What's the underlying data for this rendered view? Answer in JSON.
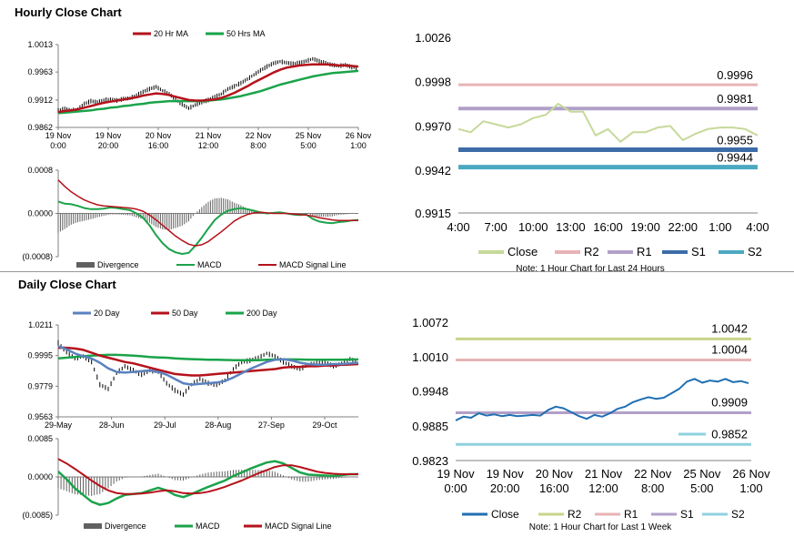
{
  "sections": {
    "hourly_title": "Hourly Close Chart",
    "daily_title": "Daily Close Chart"
  },
  "colors": {
    "ma_short": "#b5121b",
    "ma_long": "#1aa34a",
    "ma20_daily": "#5a82be",
    "ma200_daily": "#1aa34a",
    "price_bar": "#000000",
    "divergence": "#606060",
    "close_light": "#c6d99a",
    "r2": "#e7b3b6",
    "r1": "#b1a0c8",
    "s1": "#3c6ca8",
    "s2": "#4ba9c0",
    "close_blue": "#1f6fb2",
    "r2_weekly": "#c8d48a",
    "s2_weekly": "#8fd1df",
    "axis": "#808080"
  },
  "chart_data": [
    {
      "id": "hourly_price",
      "type": "line",
      "legend": [
        "20 Hr MA",
        "50 Hrs MA"
      ],
      "ylim": [
        0.9862,
        1.0013
      ],
      "yticks": [
        "1.0013",
        "0.9963",
        "0.9912",
        "0.9862"
      ],
      "ytick_values": [
        1.0013,
        0.9963,
        0.9912,
        0.9862
      ],
      "xticks": [
        [
          "19 Nov",
          "0:00"
        ],
        [
          "19 Nov",
          "20:00"
        ],
        [
          "20 Nov",
          "16:00"
        ],
        [
          "21 Nov",
          "12:00"
        ],
        [
          "22 Nov",
          "8:00"
        ],
        [
          "25 Nov",
          "5:00"
        ],
        [
          "26 Nov",
          "1:00"
        ]
      ],
      "price": [
        0.9893,
        0.9896,
        0.9893,
        0.9895,
        0.9905,
        0.991,
        0.9908,
        0.9912,
        0.9913,
        0.9911,
        0.9914,
        0.9915,
        0.9921,
        0.9927,
        0.9932,
        0.9936,
        0.9929,
        0.9923,
        0.9913,
        0.9904,
        0.9897,
        0.9903,
        0.9908,
        0.9912,
        0.9918,
        0.9923,
        0.9932,
        0.9937,
        0.9943,
        0.995,
        0.9958,
        0.9966,
        0.9973,
        0.9979,
        0.9982,
        0.998,
        0.9978,
        0.998,
        0.9983,
        0.9987,
        0.9983,
        0.9979,
        0.9976,
        0.9974,
        0.9976,
        0.9972,
        0.997
      ],
      "ma20": [
        0.989,
        0.9892,
        0.9893,
        0.9895,
        0.9898,
        0.9901,
        0.9904,
        0.9907,
        0.9909,
        0.9911,
        0.9913,
        0.9915,
        0.9917,
        0.992,
        0.9922,
        0.9924,
        0.9923,
        0.9921,
        0.9918,
        0.9915,
        0.9912,
        0.9911,
        0.9911,
        0.9912,
        0.9913,
        0.9916,
        0.992,
        0.9925,
        0.9931,
        0.9937,
        0.9944,
        0.995,
        0.9956,
        0.9962,
        0.9967,
        0.9971,
        0.9973,
        0.9975,
        0.9976,
        0.9977,
        0.9977,
        0.9977,
        0.9976,
        0.9975,
        0.9975,
        0.9974,
        0.9973
      ],
      "ma50": [
        0.9888,
        0.9889,
        0.989,
        0.9891,
        0.9892,
        0.9893,
        0.9895,
        0.9896,
        0.9898,
        0.9899,
        0.9901,
        0.9902,
        0.9904,
        0.9905,
        0.9907,
        0.9908,
        0.9909,
        0.991,
        0.991,
        0.991,
        0.991,
        0.991,
        0.991,
        0.9911,
        0.9912,
        0.9913,
        0.9915,
        0.9917,
        0.9919,
        0.9922,
        0.9925,
        0.9928,
        0.9932,
        0.9936,
        0.994,
        0.9943,
        0.9946,
        0.9949,
        0.9952,
        0.9955,
        0.9957,
        0.9959,
        0.9961,
        0.9962,
        0.9963,
        0.9964,
        0.9965
      ]
    },
    {
      "id": "hourly_macd",
      "type": "line",
      "legend": [
        "Divergence",
        "MACD",
        "MACD Signal Line"
      ],
      "ylim": [
        -0.0008,
        0.0008
      ],
      "yticks": [
        "0.0008",
        "0.0000",
        "(0.0008)"
      ],
      "ytick_values": [
        0.0008,
        0.0,
        -0.0008
      ],
      "macd": [
        0.00022,
        0.00018,
        0.00017,
        0.00014,
        0.0001,
        8e-05,
        8e-05,
        9e-05,
        0.00011,
        0.0001,
        8e-05,
        6e-05,
        0.0,
        -8e-05,
        -0.00022,
        -0.0004,
        -0.00055,
        -0.00066,
        -0.00072,
        -0.00075,
        -0.00073,
        -0.0006,
        -0.00045,
        -0.00028,
        -0.00012,
        -2e-05,
        5e-05,
        8e-05,
        0.0001,
        8e-05,
        5e-05,
        2e-05,
        0.0,
        1e-05,
        2e-05,
        0.0,
        -2e-05,
        -3e-05,
        -2e-05,
        -0.0001,
        -0.00015,
        -0.00017,
        -0.00018,
        -0.00016,
        -0.00015,
        -0.00013,
        -0.00012
      ],
      "signal": [
        0.00062,
        0.0005,
        0.0004,
        0.00032,
        0.00025,
        0.0002,
        0.00016,
        0.00014,
        0.00013,
        0.00012,
        0.00011,
        0.0001,
        8e-05,
        4e-05,
        -3e-05,
        -0.00012,
        -0.00022,
        -0.00032,
        -0.00042,
        -0.0005,
        -0.00057,
        -0.0006,
        -0.00058,
        -0.00052,
        -0.00043,
        -0.00034,
        -0.00024,
        -0.00014,
        -7e-05,
        -2e-05,
        1e-05,
        2e-05,
        1e-05,
        0.0,
        0.0,
        0.0,
        -1e-05,
        -2e-05,
        -3e-05,
        -5e-05,
        -8e-05,
        -0.0001,
        -0.00012,
        -0.00013,
        -0.00013,
        -0.00013,
        -0.00013
      ]
    },
    {
      "id": "hourly_24h",
      "type": "line",
      "legend": [
        "Close",
        "R2",
        "R1",
        "S1",
        "S2"
      ],
      "note": "Note: 1 Hour Chart for Last 24 Hours",
      "ylim": [
        0.9915,
        1.0026
      ],
      "yticks": [
        "1.0026",
        "0.9998",
        "0.9970",
        "0.9942",
        "0.9915"
      ],
      "ytick_values": [
        1.0026,
        0.9998,
        0.997,
        0.9942,
        0.9915
      ],
      "xticks": [
        "4:00",
        "7:00",
        "10:00",
        "13:00",
        "16:00",
        "19:00",
        "22:00",
        "1:00",
        "4:00"
      ],
      "close": [
        0.9968,
        0.9966,
        0.9973,
        0.9971,
        0.9969,
        0.9971,
        0.9975,
        0.9977,
        0.9984,
        0.9979,
        0.9979,
        0.9964,
        0.9968,
        0.996,
        0.9966,
        0.9966,
        0.9969,
        0.997,
        0.9961,
        0.9965,
        0.9968,
        0.9969,
        0.9969,
        0.9968,
        0.9964
      ],
      "levels": [
        {
          "name": "R2",
          "value": 0.9996,
          "label": "0.9996"
        },
        {
          "name": "R1",
          "value": 0.9981,
          "label": "0.9981"
        },
        {
          "name": "S1",
          "value": 0.9955,
          "label": "0.9955"
        },
        {
          "name": "S2",
          "value": 0.9944,
          "label": "0.9944"
        }
      ]
    },
    {
      "id": "daily_price",
      "type": "line",
      "legend": [
        "20 Day",
        "50 Day",
        "200 Day"
      ],
      "ylim": [
        0.9563,
        1.0211
      ],
      "yticks": [
        "1.0211",
        "0.9995",
        "0.9779",
        "0.9563"
      ],
      "ytick_values": [
        1.0211,
        0.9995,
        0.9779,
        0.9563
      ],
      "xticks": [
        "29-May",
        "28-Jun",
        "29-Jul",
        "28-Aug",
        "27-Sep",
        "29-Oct"
      ],
      "price": [
        1.0085,
        1.002,
        0.9975,
        0.999,
        0.995,
        0.979,
        0.976,
        0.987,
        0.992,
        0.989,
        0.986,
        0.989,
        0.988,
        0.98,
        0.975,
        0.972,
        0.979,
        0.983,
        0.98,
        0.979,
        0.982,
        0.99,
        0.995,
        0.996,
        0.998,
        1.001,
        0.999,
        0.995,
        0.992,
        0.99,
        0.993,
        0.994,
        0.995,
        0.992,
        0.994,
        0.997,
        0.995
      ],
      "ma20": [
        1.006,
        1.004,
        1.001,
        0.999,
        0.9975,
        0.9945,
        0.9905,
        0.988,
        0.9875,
        0.988,
        0.9885,
        0.989,
        0.988,
        0.986,
        0.983,
        0.98,
        0.979,
        0.9795,
        0.98,
        0.9805,
        0.9815,
        0.984,
        0.987,
        0.99,
        0.9925,
        0.995,
        0.9965,
        0.997,
        0.996,
        0.9945,
        0.9935,
        0.993,
        0.993,
        0.9935,
        0.9935,
        0.994,
        0.9945
      ],
      "ma50": [
        1.005,
        1.005,
        1.0045,
        1.0035,
        1.0015,
        0.9995,
        0.998,
        0.9965,
        0.995,
        0.994,
        0.9925,
        0.991,
        0.9895,
        0.988,
        0.9865,
        0.986,
        0.9855,
        0.9855,
        0.986,
        0.9865,
        0.987,
        0.9875,
        0.988,
        0.9885,
        0.989,
        0.9895,
        0.99,
        0.991,
        0.9915,
        0.9915,
        0.992,
        0.992,
        0.9925,
        0.9925,
        0.993,
        0.9932,
        0.9935
      ],
      "ma200": [
        0.9975,
        0.998,
        0.9985,
        0.999,
        0.9995,
        0.9998,
        1.0,
        1.0,
        0.9998,
        0.9995,
        0.999,
        0.9985,
        0.9982,
        0.998,
        0.9975,
        0.9972,
        0.997,
        0.9968,
        0.9966,
        0.9965,
        0.9964,
        0.9963,
        0.9962,
        0.9962,
        0.9963,
        0.9965,
        0.9967,
        0.9968,
        0.9968,
        0.9967,
        0.9966,
        0.9965,
        0.9965,
        0.9965,
        0.9966,
        0.9967,
        0.9968
      ]
    },
    {
      "id": "daily_macd",
      "type": "line",
      "legend": [
        "Divergence",
        "MACD",
        "MACD Signal Line"
      ],
      "ylim": [
        -0.0085,
        0.0085
      ],
      "yticks": [
        "0.0085",
        "0.0000",
        "(0.0085)"
      ],
      "ytick_values": [
        0.0085,
        0.0,
        -0.0085
      ],
      "macd": [
        0.0012,
        -0.0005,
        -0.0025,
        -0.004,
        -0.0055,
        -0.0062,
        -0.0058,
        -0.0048,
        -0.004,
        -0.0038,
        -0.0036,
        -0.003,
        -0.0024,
        -0.003,
        -0.004,
        -0.0045,
        -0.0038,
        -0.003,
        -0.0022,
        -0.0015,
        -0.0008,
        0.0002,
        0.001,
        0.0018,
        0.0025,
        0.0032,
        0.0035,
        0.003,
        0.002,
        0.001,
        0.0005,
        0.0004,
        0.0003,
        0.0002,
        0.0004,
        0.0006,
        0.0006
      ],
      "signal": [
        0.004,
        0.003,
        0.0018,
        0.0005,
        -0.0008,
        -0.002,
        -0.003,
        -0.0036,
        -0.0038,
        -0.0038,
        -0.0037,
        -0.0035,
        -0.0032,
        -0.003,
        -0.0032,
        -0.0036,
        -0.0037,
        -0.0036,
        -0.0033,
        -0.0028,
        -0.0022,
        -0.0015,
        -0.0008,
        0.0,
        0.0008,
        0.0015,
        0.0022,
        0.0026,
        0.0026,
        0.0022,
        0.0017,
        0.0012,
        0.0009,
        0.0007,
        0.0006,
        0.0006,
        0.0006
      ]
    },
    {
      "id": "weekly_hourly",
      "type": "line",
      "legend": [
        "Close",
        "R2",
        "R1",
        "S1",
        "S2"
      ],
      "note": "Note: 1 Hour Chart for Last 1 Week",
      "ylim": [
        0.9823,
        1.0072
      ],
      "yticks": [
        "1.0072",
        "1.0010",
        "0.9948",
        "0.9885",
        "0.9823"
      ],
      "ytick_values": [
        1.0072,
        1.001,
        0.9948,
        0.9885,
        0.9823
      ],
      "xticks": [
        [
          "19 Nov",
          "0:00"
        ],
        [
          "19 Nov",
          "20:00"
        ],
        [
          "20 Nov",
          "16:00"
        ],
        [
          "21 Nov",
          "12:00"
        ],
        [
          "22 Nov",
          "8:00"
        ],
        [
          "25 Nov",
          "5:00"
        ],
        [
          "26 Nov",
          "1:00"
        ]
      ],
      "close": [
        0.9895,
        0.9902,
        0.99,
        0.9908,
        0.9904,
        0.9906,
        0.9903,
        0.9905,
        0.9903,
        0.9904,
        0.9905,
        0.9904,
        0.9914,
        0.992,
        0.9917,
        0.991,
        0.9903,
        0.9898,
        0.9905,
        0.9902,
        0.9908,
        0.9916,
        0.992,
        0.9928,
        0.9933,
        0.9937,
        0.9934,
        0.9936,
        0.9944,
        0.9952,
        0.9965,
        0.997,
        0.9963,
        0.9967,
        0.9965,
        0.997,
        0.9964,
        0.9966,
        0.9962
      ],
      "levels": [
        {
          "name": "R2",
          "value": 1.0042,
          "label": "1.0042"
        },
        {
          "name": "R1",
          "value": 1.0004,
          "label": "1.0004"
        },
        {
          "name": "S1",
          "value": 0.9909,
          "label": "0.9909"
        },
        {
          "name": "S2",
          "value": 0.9852,
          "label": "0.9852"
        }
      ]
    }
  ]
}
